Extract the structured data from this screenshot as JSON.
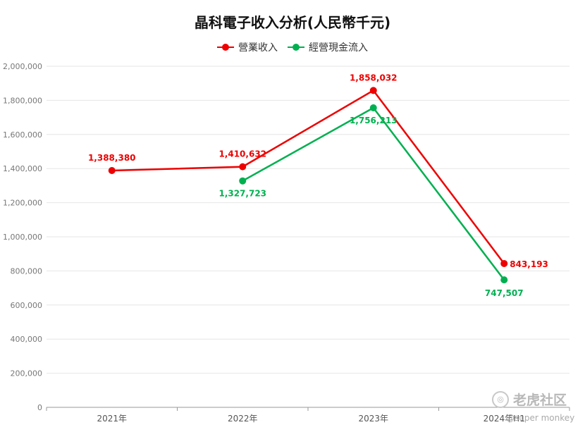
{
  "chart_data": {
    "type": "line",
    "title": "晶科電子收入分析(人民幣千元)",
    "categories": [
      "2021年",
      "2022年",
      "2023年",
      "2024年H1"
    ],
    "ylim": [
      0,
      2000000
    ],
    "yticks": [
      0,
      200000,
      400000,
      600000,
      800000,
      1000000,
      1200000,
      1400000,
      1600000,
      1800000,
      2000000
    ],
    "grid": "horizontal",
    "legend_position": "top-center",
    "series": [
      {
        "name": "營業收入",
        "color": "#ee0000",
        "values": [
          1388380,
          1410632,
          1858032,
          843193
        ]
      },
      {
        "name": "經營現金流入",
        "color": "#00b050",
        "values": [
          null,
          1327723,
          1756213,
          747507
        ]
      }
    ]
  },
  "watermark": {
    "text": "老虎社区",
    "sub": "@super monkey"
  }
}
